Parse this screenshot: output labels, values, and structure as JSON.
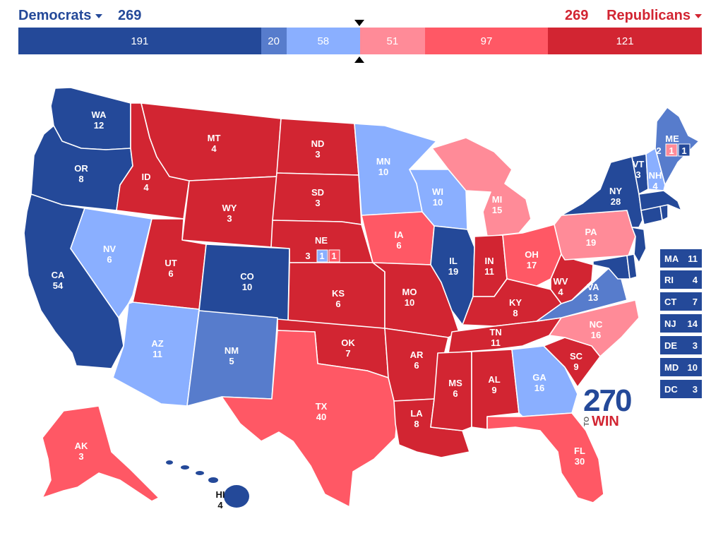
{
  "header": {
    "dem_label": "Democrats",
    "dem_total": "269",
    "rep_label": "Republicans",
    "rep_total": "269"
  },
  "bar": [
    {
      "value": "191",
      "color": "#244999",
      "votes": 191
    },
    {
      "value": "20",
      "color": "#577ccc",
      "votes": 20
    },
    {
      "value": "58",
      "color": "#8aafff",
      "votes": 58
    },
    {
      "value": "51",
      "color": "#ff8b98",
      "votes": 51
    },
    {
      "value": "97",
      "color": "#ff5865",
      "votes": 97
    },
    {
      "value": "121",
      "color": "#d22532",
      "votes": 121
    }
  ],
  "colors": {
    "safe_dem": "#244999",
    "likely_dem": "#577ccc",
    "lean_dem": "#8aafff",
    "lean_rep": "#ff8b98",
    "likely_rep": "#ff5865",
    "safe_rep": "#d22532"
  },
  "states": [
    {
      "abbr": "WA",
      "ev": "12"
    },
    {
      "abbr": "OR",
      "ev": "8"
    },
    {
      "abbr": "CA",
      "ev": "54"
    },
    {
      "abbr": "ID",
      "ev": "4"
    },
    {
      "abbr": "MT",
      "ev": "4"
    },
    {
      "abbr": "NV",
      "ev": "6"
    },
    {
      "abbr": "WY",
      "ev": "3"
    },
    {
      "abbr": "UT",
      "ev": "6"
    },
    {
      "abbr": "AZ",
      "ev": "11"
    },
    {
      "abbr": "CO",
      "ev": "10"
    },
    {
      "abbr": "NM",
      "ev": "5"
    },
    {
      "abbr": "ND",
      "ev": "3"
    },
    {
      "abbr": "SD",
      "ev": "3"
    },
    {
      "abbr": "NE",
      "ev": "3"
    },
    {
      "abbr": "KS",
      "ev": "6"
    },
    {
      "abbr": "OK",
      "ev": "7"
    },
    {
      "abbr": "TX",
      "ev": "40"
    },
    {
      "abbr": "MN",
      "ev": "10"
    },
    {
      "abbr": "IA",
      "ev": "6"
    },
    {
      "abbr": "MO",
      "ev": "10"
    },
    {
      "abbr": "AR",
      "ev": "6"
    },
    {
      "abbr": "LA",
      "ev": "8"
    },
    {
      "abbr": "WI",
      "ev": "10"
    },
    {
      "abbr": "IL",
      "ev": "19"
    },
    {
      "abbr": "MI",
      "ev": "15"
    },
    {
      "abbr": "IN",
      "ev": "11"
    },
    {
      "abbr": "OH",
      "ev": "17"
    },
    {
      "abbr": "KY",
      "ev": "8"
    },
    {
      "abbr": "TN",
      "ev": "11"
    },
    {
      "abbr": "MS",
      "ev": "6"
    },
    {
      "abbr": "AL",
      "ev": "9"
    },
    {
      "abbr": "GA",
      "ev": "16"
    },
    {
      "abbr": "FL",
      "ev": "30"
    },
    {
      "abbr": "SC",
      "ev": "9"
    },
    {
      "abbr": "NC",
      "ev": "16"
    },
    {
      "abbr": "VA",
      "ev": "13"
    },
    {
      "abbr": "WV",
      "ev": "4"
    },
    {
      "abbr": "PA",
      "ev": "19"
    },
    {
      "abbr": "NY",
      "ev": "28"
    },
    {
      "abbr": "VT",
      "ev": "3"
    },
    {
      "abbr": "NH",
      "ev": "4"
    },
    {
      "abbr": "ME",
      "ev": "2"
    },
    {
      "abbr": "AK",
      "ev": "3"
    },
    {
      "abbr": "HI",
      "ev": "4"
    }
  ],
  "district_votes": {
    "ne_d2": "1",
    "ne_d3": "1",
    "me_d1": "1",
    "me_d2": "1"
  },
  "small_states": [
    {
      "abbr": "MA",
      "ev": "11"
    },
    {
      "abbr": "RI",
      "ev": "4"
    },
    {
      "abbr": "CT",
      "ev": "7"
    },
    {
      "abbr": "NJ",
      "ev": "14"
    },
    {
      "abbr": "DE",
      "ev": "3"
    },
    {
      "abbr": "MD",
      "ev": "10"
    },
    {
      "abbr": "DC",
      "ev": "3"
    }
  ],
  "logo": {
    "number": "270",
    "to": "TO",
    "win": "WIN"
  }
}
